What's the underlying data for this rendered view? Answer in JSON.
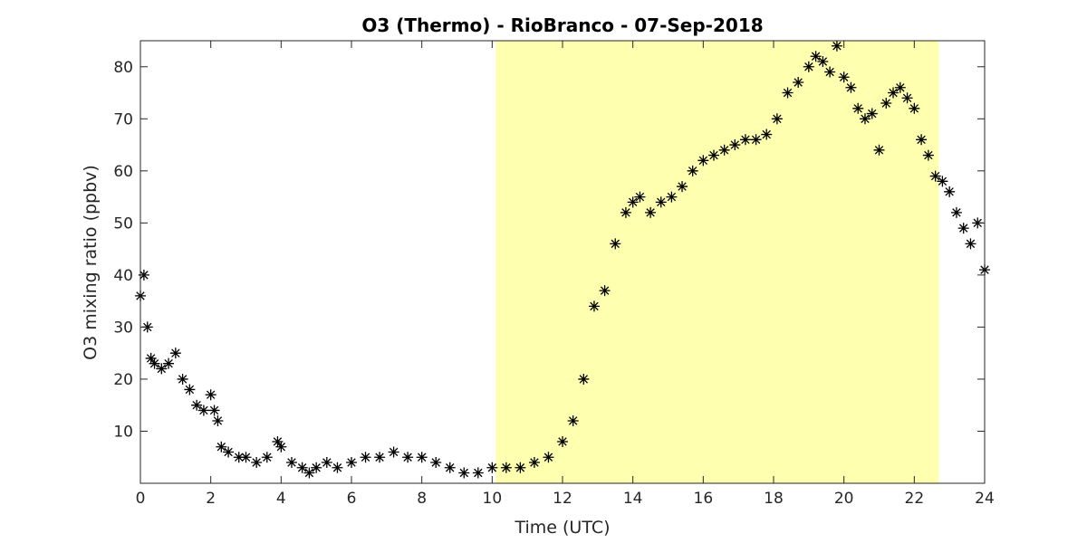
{
  "chart_data": {
    "type": "scatter",
    "title": "O3 (Thermo) - RioBranco - 07-Sep-2018",
    "xlabel": "Time (UTC)",
    "ylabel": "O3 mixing ratio (ppbv)",
    "xlim": [
      0,
      24
    ],
    "ylim": [
      0,
      85
    ],
    "xticks": [
      "0",
      "2",
      "4",
      "6",
      "8",
      "10",
      "12",
      "14",
      "16",
      "18",
      "20",
      "22",
      "24"
    ],
    "yticks": [
      "10",
      "20",
      "30",
      "40",
      "50",
      "60",
      "70",
      "80"
    ],
    "marker": "*",
    "marker_color": "#000000",
    "grid": false,
    "shaded_region": {
      "x_start": 10.1,
      "x_end": 22.7,
      "color": "#ffffb0",
      "meaning": "daylight"
    },
    "series": [
      {
        "x": [
          0.0,
          0.1,
          0.2,
          0.3,
          0.4,
          0.6,
          0.8,
          1.0,
          1.2,
          1.4,
          1.6,
          1.8,
          2.0,
          2.1,
          2.2,
          2.3,
          2.5,
          2.8,
          3.0,
          3.3,
          3.6,
          3.9,
          4.0,
          4.3,
          4.6,
          4.8,
          5.0,
          5.3,
          5.6,
          6.0,
          6.4,
          6.8,
          7.2,
          7.6,
          8.0,
          8.4,
          8.8,
          9.2,
          9.6,
          10.0,
          10.4,
          10.8,
          11.2,
          11.6,
          12.0,
          12.3,
          12.6,
          12.9,
          13.2,
          13.5,
          13.8,
          14.0,
          14.2,
          14.5,
          14.8,
          15.1,
          15.4,
          15.7,
          16.0,
          16.3,
          16.6,
          16.9,
          17.2,
          17.5,
          17.8,
          18.1,
          18.4,
          18.7,
          19.0,
          19.2,
          19.4,
          19.6,
          19.8,
          20.0,
          20.2,
          20.4,
          20.6,
          20.8,
          21.0,
          21.2,
          21.4,
          21.6,
          21.8,
          22.0,
          22.2,
          22.4,
          22.6,
          22.8,
          23.0,
          23.2,
          23.4,
          23.6,
          23.8,
          24.0
        ],
        "y": [
          36,
          40,
          30,
          24,
          23,
          22,
          23,
          25,
          20,
          18,
          15,
          14,
          17,
          14,
          12,
          7,
          6,
          5,
          5,
          4,
          5,
          8,
          7,
          4,
          3,
          2,
          3,
          4,
          3,
          4,
          5,
          5,
          6,
          5,
          5,
          4,
          3,
          2,
          2,
          3,
          3,
          3,
          4,
          5,
          8,
          12,
          20,
          34,
          37,
          46,
          52,
          54,
          55,
          52,
          54,
          55,
          57,
          60,
          62,
          63,
          64,
          65,
          66,
          66,
          67,
          70,
          75,
          77,
          80,
          82,
          81,
          79,
          84,
          78,
          76,
          72,
          70,
          71,
          64,
          73,
          75,
          76,
          74,
          72,
          66,
          63,
          59,
          58,
          56,
          52,
          49,
          46,
          50,
          41
        ]
      }
    ]
  }
}
